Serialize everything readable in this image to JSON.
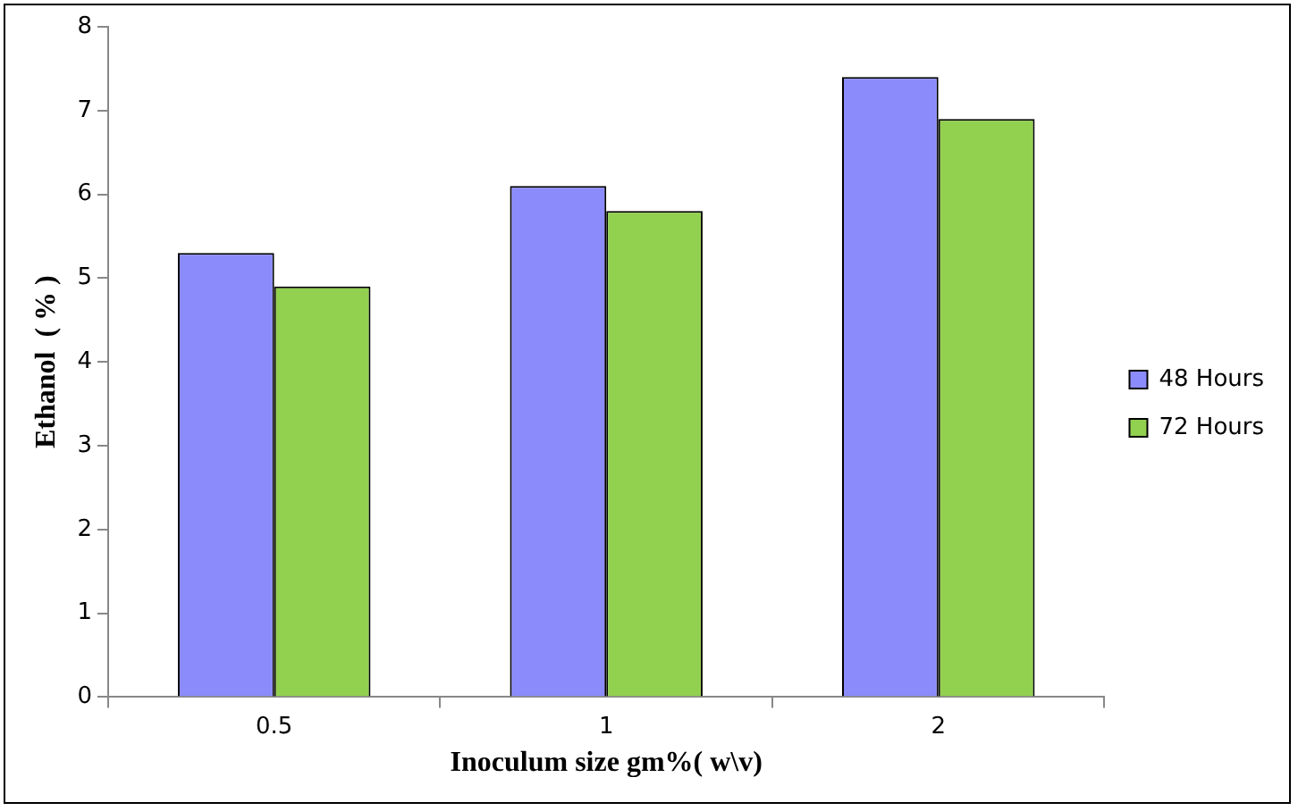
{
  "chart_data": {
    "type": "bar",
    "xlabel": "Inoculum size gm%( w\\v)",
    "ylabel": "Ethanol  ( % )",
    "categories": [
      "0.5",
      "1",
      "2"
    ],
    "series": [
      {
        "name": "48 Hours",
        "color": "#8b8bfc",
        "values": [
          5.3,
          6.1,
          7.4
        ]
      },
      {
        "name": "72 Hours",
        "color": "#92d050",
        "values": [
          4.9,
          5.8,
          6.9
        ]
      }
    ],
    "ylim": [
      0,
      8
    ],
    "yticks": [
      0,
      1,
      2,
      3,
      4,
      5,
      6,
      7,
      8
    ],
    "grid": false,
    "legend": "right"
  }
}
